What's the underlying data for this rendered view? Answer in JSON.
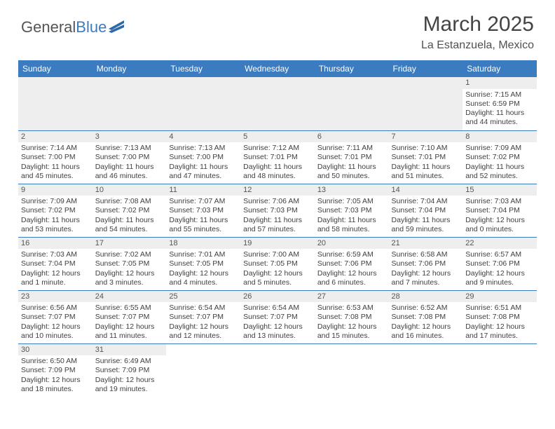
{
  "brand": {
    "part1": "General",
    "part2": "Blue"
  },
  "title": {
    "month": "March 2025",
    "location": "La Estanzuela, Mexico"
  },
  "colors": {
    "header_bg": "#3b7bbf",
    "daynum_bg": "#eeeeee",
    "rule": "#3b7bbf"
  },
  "weekdays": [
    "Sunday",
    "Monday",
    "Tuesday",
    "Wednesday",
    "Thursday",
    "Friday",
    "Saturday"
  ],
  "weeks": [
    [
      null,
      null,
      null,
      null,
      null,
      null,
      {
        "n": "1",
        "sunrise": "Sunrise: 7:15 AM",
        "sunset": "Sunset: 6:59 PM",
        "day": "Daylight: 11 hours and 44 minutes."
      }
    ],
    [
      {
        "n": "2",
        "sunrise": "Sunrise: 7:14 AM",
        "sunset": "Sunset: 7:00 PM",
        "day": "Daylight: 11 hours and 45 minutes."
      },
      {
        "n": "3",
        "sunrise": "Sunrise: 7:13 AM",
        "sunset": "Sunset: 7:00 PM",
        "day": "Daylight: 11 hours and 46 minutes."
      },
      {
        "n": "4",
        "sunrise": "Sunrise: 7:13 AM",
        "sunset": "Sunset: 7:00 PM",
        "day": "Daylight: 11 hours and 47 minutes."
      },
      {
        "n": "5",
        "sunrise": "Sunrise: 7:12 AM",
        "sunset": "Sunset: 7:01 PM",
        "day": "Daylight: 11 hours and 48 minutes."
      },
      {
        "n": "6",
        "sunrise": "Sunrise: 7:11 AM",
        "sunset": "Sunset: 7:01 PM",
        "day": "Daylight: 11 hours and 50 minutes."
      },
      {
        "n": "7",
        "sunrise": "Sunrise: 7:10 AM",
        "sunset": "Sunset: 7:01 PM",
        "day": "Daylight: 11 hours and 51 minutes."
      },
      {
        "n": "8",
        "sunrise": "Sunrise: 7:09 AM",
        "sunset": "Sunset: 7:02 PM",
        "day": "Daylight: 11 hours and 52 minutes."
      }
    ],
    [
      {
        "n": "9",
        "sunrise": "Sunrise: 7:09 AM",
        "sunset": "Sunset: 7:02 PM",
        "day": "Daylight: 11 hours and 53 minutes."
      },
      {
        "n": "10",
        "sunrise": "Sunrise: 7:08 AM",
        "sunset": "Sunset: 7:02 PM",
        "day": "Daylight: 11 hours and 54 minutes."
      },
      {
        "n": "11",
        "sunrise": "Sunrise: 7:07 AM",
        "sunset": "Sunset: 7:03 PM",
        "day": "Daylight: 11 hours and 55 minutes."
      },
      {
        "n": "12",
        "sunrise": "Sunrise: 7:06 AM",
        "sunset": "Sunset: 7:03 PM",
        "day": "Daylight: 11 hours and 57 minutes."
      },
      {
        "n": "13",
        "sunrise": "Sunrise: 7:05 AM",
        "sunset": "Sunset: 7:03 PM",
        "day": "Daylight: 11 hours and 58 minutes."
      },
      {
        "n": "14",
        "sunrise": "Sunrise: 7:04 AM",
        "sunset": "Sunset: 7:04 PM",
        "day": "Daylight: 11 hours and 59 minutes."
      },
      {
        "n": "15",
        "sunrise": "Sunrise: 7:03 AM",
        "sunset": "Sunset: 7:04 PM",
        "day": "Daylight: 12 hours and 0 minutes."
      }
    ],
    [
      {
        "n": "16",
        "sunrise": "Sunrise: 7:03 AM",
        "sunset": "Sunset: 7:04 PM",
        "day": "Daylight: 12 hours and 1 minute."
      },
      {
        "n": "17",
        "sunrise": "Sunrise: 7:02 AM",
        "sunset": "Sunset: 7:05 PM",
        "day": "Daylight: 12 hours and 3 minutes."
      },
      {
        "n": "18",
        "sunrise": "Sunrise: 7:01 AM",
        "sunset": "Sunset: 7:05 PM",
        "day": "Daylight: 12 hours and 4 minutes."
      },
      {
        "n": "19",
        "sunrise": "Sunrise: 7:00 AM",
        "sunset": "Sunset: 7:05 PM",
        "day": "Daylight: 12 hours and 5 minutes."
      },
      {
        "n": "20",
        "sunrise": "Sunrise: 6:59 AM",
        "sunset": "Sunset: 7:06 PM",
        "day": "Daylight: 12 hours and 6 minutes."
      },
      {
        "n": "21",
        "sunrise": "Sunrise: 6:58 AM",
        "sunset": "Sunset: 7:06 PM",
        "day": "Daylight: 12 hours and 7 minutes."
      },
      {
        "n": "22",
        "sunrise": "Sunrise: 6:57 AM",
        "sunset": "Sunset: 7:06 PM",
        "day": "Daylight: 12 hours and 9 minutes."
      }
    ],
    [
      {
        "n": "23",
        "sunrise": "Sunrise: 6:56 AM",
        "sunset": "Sunset: 7:07 PM",
        "day": "Daylight: 12 hours and 10 minutes."
      },
      {
        "n": "24",
        "sunrise": "Sunrise: 6:55 AM",
        "sunset": "Sunset: 7:07 PM",
        "day": "Daylight: 12 hours and 11 minutes."
      },
      {
        "n": "25",
        "sunrise": "Sunrise: 6:54 AM",
        "sunset": "Sunset: 7:07 PM",
        "day": "Daylight: 12 hours and 12 minutes."
      },
      {
        "n": "26",
        "sunrise": "Sunrise: 6:54 AM",
        "sunset": "Sunset: 7:07 PM",
        "day": "Daylight: 12 hours and 13 minutes."
      },
      {
        "n": "27",
        "sunrise": "Sunrise: 6:53 AM",
        "sunset": "Sunset: 7:08 PM",
        "day": "Daylight: 12 hours and 15 minutes."
      },
      {
        "n": "28",
        "sunrise": "Sunrise: 6:52 AM",
        "sunset": "Sunset: 7:08 PM",
        "day": "Daylight: 12 hours and 16 minutes."
      },
      {
        "n": "29",
        "sunrise": "Sunrise: 6:51 AM",
        "sunset": "Sunset: 7:08 PM",
        "day": "Daylight: 12 hours and 17 minutes."
      }
    ],
    [
      {
        "n": "30",
        "sunrise": "Sunrise: 6:50 AM",
        "sunset": "Sunset: 7:09 PM",
        "day": "Daylight: 12 hours and 18 minutes."
      },
      {
        "n": "31",
        "sunrise": "Sunrise: 6:49 AM",
        "sunset": "Sunset: 7:09 PM",
        "day": "Daylight: 12 hours and 19 minutes."
      },
      null,
      null,
      null,
      null,
      null
    ]
  ]
}
